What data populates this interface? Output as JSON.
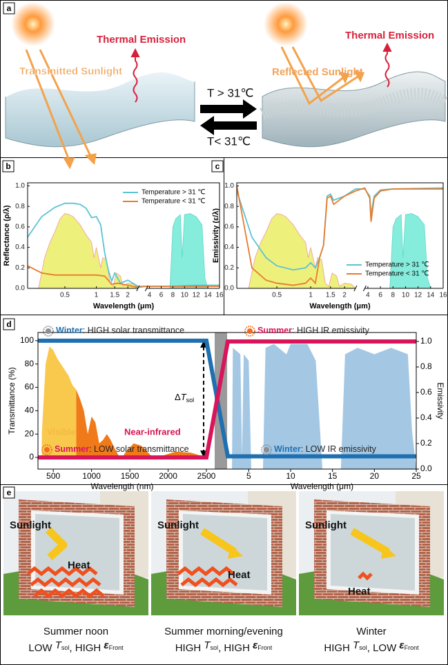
{
  "panel_a": {
    "label": "a",
    "thermal_left": "Thermal Emission",
    "transmitted": "Transmitted Sunlight",
    "reflected": "Reflected Sunlight",
    "thermal_right": "Thermal Emission",
    "hot": "T > 31℃",
    "cold": "T< 31℃"
  },
  "chart_data": [
    {
      "type": "broken-line",
      "panel": "b",
      "xlabel": "Wavelength (μm)",
      "ylabel": "Reflectance (ρ/λ)",
      "xscale": "log",
      "xlim": [
        0.22,
        2.5
      ],
      "xticks": [
        0.5,
        1,
        1.5,
        2
      ],
      "x2lim": [
        3.5,
        16
      ],
      "x2ticks": [
        4,
        6,
        8,
        10,
        12,
        14,
        16
      ],
      "ylim": [
        0,
        1.03
      ],
      "yticks": [
        {
          "value": 0,
          "label": "0.0"
        },
        0.2,
        0.4,
        0.6,
        0.8,
        {
          "value": 1,
          "label": "1.0"
        }
      ],
      "legend": "upper right",
      "fills": [
        {
          "color": "#eef07c",
          "edge": "#ef9aa0",
          "x": [
            0.28,
            0.32,
            0.36,
            0.4,
            0.45,
            0.5,
            0.55,
            0.6,
            0.7,
            0.8,
            0.9,
            0.95,
            1.0,
            1.1,
            1.15,
            1.25,
            1.35,
            1.45,
            1.55,
            1.7,
            1.8,
            2.0,
            2.3,
            2.5
          ],
          "values": [
            0,
            0.3,
            0.45,
            0.55,
            0.68,
            0.73,
            0.72,
            0.7,
            0.62,
            0.52,
            0.45,
            0.3,
            0.4,
            0.2,
            0.3,
            0.28,
            0.05,
            0.02,
            0.15,
            0.12,
            0.02,
            0.05,
            0.04,
            0
          ]
        },
        {
          "color": "#86ecdc",
          "edge": "#5fd8c8",
          "x": [
            7.5,
            8,
            8.5,
            9.3,
            9.6,
            10,
            11,
            12,
            13,
            13.5,
            14
          ],
          "values": [
            0,
            0.6,
            0.68,
            0.72,
            0.3,
            0.72,
            0.73,
            0.7,
            0.62,
            0.1,
            0
          ]
        }
      ],
      "series": [
        {
          "name": "Temperature > 31 ℃",
          "color": "#5bc3d3",
          "x": [
            0.22,
            0.3,
            0.4,
            0.5,
            0.6,
            0.7,
            0.8,
            0.9,
            1.0,
            1.1,
            1.2,
            1.3,
            1.4,
            1.5,
            1.7,
            2.0,
            2.5,
            3.5,
            4,
            8,
            12,
            16
          ],
          "values": [
            0.5,
            0.7,
            0.79,
            0.83,
            0.83,
            0.82,
            0.78,
            0.69,
            0.7,
            0.62,
            0.35,
            0.18,
            0.07,
            0.15,
            0.05,
            0.08,
            0.02,
            0.02,
            0.02,
            0.02,
            0.03,
            0.03
          ]
        },
        {
          "name": "Temperature < 31 ℃",
          "color": "#e87a2c",
          "x": [
            0.22,
            0.3,
            0.4,
            0.6,
            0.8,
            1.0,
            1.2,
            1.3,
            1.4,
            1.6,
            2.0,
            2.5,
            3.5,
            16
          ],
          "values": [
            0.22,
            0.15,
            0.13,
            0.13,
            0.13,
            0.13,
            0.12,
            0.08,
            0.04,
            0.05,
            0.03,
            0.01,
            0.02,
            0.02
          ]
        }
      ]
    },
    {
      "type": "broken-line",
      "panel": "c",
      "xlabel": "Wavelength (μm)",
      "ylabel": "Emissivity (ε/λ)",
      "xscale": "log",
      "xlim": [
        0.22,
        2.5
      ],
      "xticks": [
        0.5,
        1,
        1.5,
        2
      ],
      "x2lim": [
        3.5,
        16
      ],
      "x2ticks": [
        4,
        6,
        8,
        10,
        12,
        14,
        16
      ],
      "ylim": [
        0,
        1.03
      ],
      "yticks": [
        {
          "value": 0,
          "label": "0.0"
        },
        0.2,
        0.4,
        0.6,
        0.8,
        {
          "value": 1,
          "label": "1.0"
        }
      ],
      "legend": "lower right",
      "fills": [
        {
          "color": "#eef07c",
          "edge": "#ef9aa0",
          "x": [
            0.28,
            0.32,
            0.36,
            0.4,
            0.45,
            0.5,
            0.55,
            0.6,
            0.7,
            0.8,
            0.9,
            0.95,
            1.0,
            1.1,
            1.15,
            1.25,
            1.35,
            1.45,
            1.55,
            1.7,
            1.8,
            2.0,
            2.3,
            2.5
          ],
          "values": [
            0,
            0.3,
            0.45,
            0.55,
            0.68,
            0.73,
            0.72,
            0.7,
            0.62,
            0.52,
            0.45,
            0.3,
            0.4,
            0.2,
            0.3,
            0.28,
            0.05,
            0.02,
            0.15,
            0.12,
            0.02,
            0.05,
            0.04,
            0
          ]
        },
        {
          "color": "#86ecdc",
          "edge": "#5fd8c8",
          "x": [
            7.5,
            8,
            8.5,
            9.3,
            9.6,
            10,
            11,
            12,
            13,
            13.5,
            14
          ],
          "values": [
            0,
            0.6,
            0.68,
            0.72,
            0.3,
            0.72,
            0.73,
            0.7,
            0.62,
            0.1,
            0
          ]
        }
      ],
      "series": [
        {
          "name": "Temperature > 31 ℃",
          "color": "#5bc3d3",
          "x": [
            0.22,
            0.3,
            0.4,
            0.5,
            0.7,
            0.9,
            1.0,
            1.1,
            1.2,
            1.3,
            1.4,
            1.5,
            1.6,
            2.0,
            2.5,
            3.5,
            4.3,
            4.5,
            5,
            6,
            8,
            16
          ],
          "values": [
            0.95,
            0.5,
            0.3,
            0.22,
            0.18,
            0.2,
            0.25,
            0.2,
            0.3,
            0.42,
            0.9,
            0.92,
            0.86,
            0.9,
            0.97,
            0.97,
            0.9,
            0.72,
            0.9,
            0.96,
            0.97,
            0.98
          ]
        },
        {
          "name": "Temperature < 31 ℃",
          "color": "#e87a2c",
          "x": [
            0.22,
            0.3,
            0.4,
            0.5,
            0.7,
            0.9,
            1.0,
            1.1,
            1.2,
            1.3,
            1.4,
            1.5,
            1.6,
            2.0,
            2.5,
            3.5,
            4.3,
            4.5,
            5,
            6,
            8,
            16
          ],
          "values": [
            1,
            0.2,
            0.08,
            0.05,
            0.03,
            0.05,
            0.1,
            0.05,
            0.3,
            0.42,
            0.88,
            0.9,
            0.82,
            0.9,
            0.95,
            0.98,
            0.88,
            0.65,
            0.88,
            0.95,
            0.97,
            0.97
          ]
        }
      ]
    },
    {
      "type": "dual-line",
      "panel": "d",
      "xlabel": "Wavelength (nm)",
      "x2label": "Wavelength (μm)",
      "ylabel": "Transmittance (%)",
      "y2label": "Emissivity",
      "xlim": [
        300,
        2500
      ],
      "xticks": [
        500,
        1000,
        1500,
        2000,
        2500
      ],
      "x2lim": [
        2.5,
        25
      ],
      "x2ticks": [
        5,
        10,
        15,
        20,
        25
      ],
      "ylim": [
        -10,
        107
      ],
      "yticks": [
        0,
        20,
        40,
        60,
        80,
        100
      ],
      "y2lim": [
        0,
        1.07
      ],
      "y2ticks": [
        {
          "value": 0,
          "label": "0.0"
        },
        0.2,
        0.4,
        0.6,
        0.8,
        {
          "value": 1,
          "label": "1.0"
        }
      ],
      "fills": [
        {
          "color": "#f9c94e",
          "x": [
            350,
            400,
            450,
            500,
            550,
            600,
            650,
            700,
            750,
            800
          ],
          "values": [
            20,
            80,
            95,
            92,
            85,
            80,
            75,
            70,
            62,
            58
          ]
        },
        {
          "color": "#f07a1a",
          "x": [
            800,
            850,
            900,
            950,
            1000,
            1050,
            1100,
            1150,
            1200,
            1250,
            1300,
            1350,
            1400,
            1450,
            1550,
            1650,
            1800,
            1950,
            2100,
            2300,
            2500
          ],
          "values": [
            58,
            50,
            40,
            20,
            35,
            30,
            12,
            15,
            20,
            15,
            8,
            2,
            0,
            5,
            12,
            10,
            0,
            2,
            5,
            4,
            0
          ]
        },
        {
          "color": "#a4c8e4",
          "axis": "y2",
          "x": [
            3,
            3.1,
            4,
            4.2,
            4.4,
            5,
            5.3,
            6.7,
            7,
            8,
            9.5,
            10,
            12,
            13,
            13.8,
            16,
            16.5,
            18,
            20,
            22,
            24,
            24.5,
            25
          ],
          "values": [
            0,
            0.95,
            0.9,
            0.1,
            0.9,
            0.85,
            0,
            0,
            0.95,
            0.98,
            0.9,
            0.98,
            0.98,
            0.85,
            0,
            0,
            0.9,
            0.95,
            0.9,
            0.95,
            0.9,
            0.3,
            0
          ]
        }
      ],
      "series": [
        {
          "color": "#1f70b0",
          "left": {
            "x": [
              300,
              2500
            ],
            "values": [
              100,
              100
            ]
          },
          "right": {
            "x": [
              2.5,
              25
            ],
            "values": [
              0.1,
              0.1
            ]
          }
        },
        {
          "color": "#d8155a",
          "left": {
            "x": [
              300,
              2500
            ],
            "values": [
              0,
              0
            ]
          },
          "right": {
            "x": [
              2.5,
              25
            ],
            "values": [
              1,
              1
            ]
          }
        }
      ],
      "regions": [
        {
          "text": "Visible",
          "color": "#f5b842"
        },
        {
          "text": "Near-infrared",
          "color": "#d6154f"
        }
      ],
      "delta": [
        "Δ",
        "T",
        "sol"
      ],
      "annotations": [
        {
          "key": "Winter",
          "color": "#1f70b0",
          "text": ": HIGH solar transmittance"
        },
        {
          "key": "Summer",
          "color": "#d8155a",
          "text": ": HIGH IR emissivity"
        },
        {
          "key": "Summer",
          "color": "#d8155a",
          "text": ": LOW solar transmittance"
        },
        {
          "key": "Winter",
          "color": "#1f70b0",
          "text": ": LOW IR emissivity"
        }
      ]
    }
  ],
  "panel_e": {
    "label": "e",
    "scenes": [
      {
        "sunlight": "Sunlight",
        "heat": "Heat",
        "caption": "Summer noon",
        "line2": [
          "LOW ",
          "T",
          "sol",
          ", HIGH ",
          "ε",
          "Front"
        ]
      },
      {
        "sunlight": "Sunlight",
        "heat": "Heat",
        "caption": "Summer morning/evening",
        "line2": [
          "HIGH ",
          "T",
          "sol",
          ", HIGH ",
          "ε",
          "Front"
        ]
      },
      {
        "sunlight": "Sunlight",
        "heat": "Heat",
        "caption": "Winter",
        "line2": [
          "HIGH ",
          "T",
          "sol",
          ", LOW ",
          "ε",
          "Front"
        ]
      }
    ]
  }
}
